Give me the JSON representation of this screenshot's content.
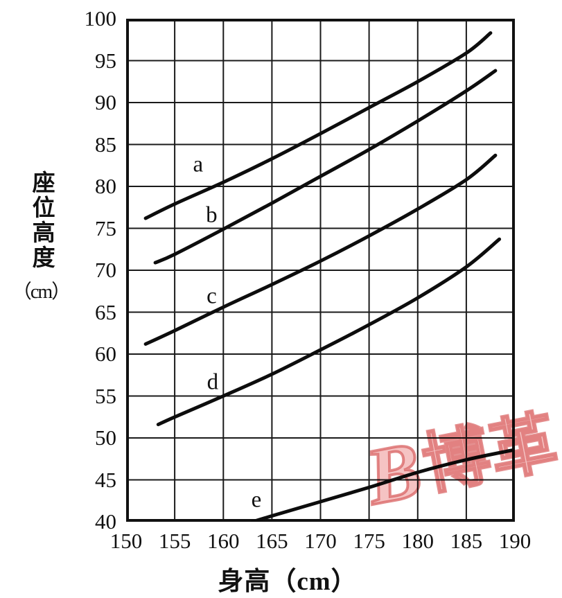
{
  "chart_data": {
    "type": "line",
    "title": "",
    "xlabel": "身高（cm）",
    "ylabel": "座位高度",
    "ylabel_unit": "（cm）",
    "xlim": [
      150,
      190
    ],
    "ylim": [
      40,
      100
    ],
    "x_ticks": [
      150,
      155,
      160,
      165,
      170,
      175,
      180,
      185,
      190
    ],
    "y_ticks": [
      100,
      95,
      90,
      85,
      80,
      75,
      70,
      65,
      60,
      55,
      50,
      45,
      40
    ],
    "grid": true,
    "grid_color": "#1a1a1a",
    "curve_color": "#0d0d0d",
    "legend_position": "on-curve-labels",
    "series": [
      {
        "name": "a",
        "label_pos": [
          157.4,
          82.6
        ],
        "points": [
          [
            152,
            76.2
          ],
          [
            155,
            77.9
          ],
          [
            160,
            80.5
          ],
          [
            165,
            83.3
          ],
          [
            170,
            86.3
          ],
          [
            175,
            89.4
          ],
          [
            180,
            92.5
          ],
          [
            185,
            95.9
          ],
          [
            187.5,
            98.3
          ]
        ]
      },
      {
        "name": "b",
        "label_pos": [
          158.8,
          76.5
        ],
        "points": [
          [
            153,
            70.9
          ],
          [
            155,
            71.9
          ],
          [
            160,
            74.9
          ],
          [
            165,
            78.0
          ],
          [
            170,
            81.2
          ],
          [
            175,
            84.4
          ],
          [
            180,
            87.8
          ],
          [
            185,
            91.4
          ],
          [
            188,
            93.8
          ]
        ]
      },
      {
        "name": "c",
        "label_pos": [
          158.8,
          66.9
        ],
        "points": [
          [
            152,
            61.2
          ],
          [
            155,
            62.8
          ],
          [
            160,
            65.6
          ],
          [
            165,
            68.3
          ],
          [
            170,
            71.1
          ],
          [
            175,
            74.1
          ],
          [
            180,
            77.3
          ],
          [
            185,
            80.8
          ],
          [
            188,
            83.7
          ]
        ]
      },
      {
        "name": "d",
        "label_pos": [
          158.9,
          56.6
        ],
        "points": [
          [
            153.3,
            51.6
          ],
          [
            155,
            52.5
          ],
          [
            160,
            55.0
          ],
          [
            165,
            57.6
          ],
          [
            170,
            60.5
          ],
          [
            175,
            63.5
          ],
          [
            180,
            66.7
          ],
          [
            185,
            70.4
          ],
          [
            188.4,
            73.7
          ]
        ]
      },
      {
        "name": "e",
        "label_pos": [
          163.4,
          42.6
        ],
        "points": [
          [
            163,
            40.0
          ],
          [
            165,
            40.7
          ],
          [
            170,
            42.4
          ],
          [
            175,
            44.1
          ],
          [
            180,
            45.9
          ],
          [
            185,
            47.4
          ],
          [
            190,
            48.6
          ]
        ]
      }
    ]
  },
  "watermark": {
    "mark": "B",
    "text": "博革",
    "fill_color": "#f3b8b8",
    "stroke_color": "#db6a6a"
  },
  "ink_color": "#111111"
}
